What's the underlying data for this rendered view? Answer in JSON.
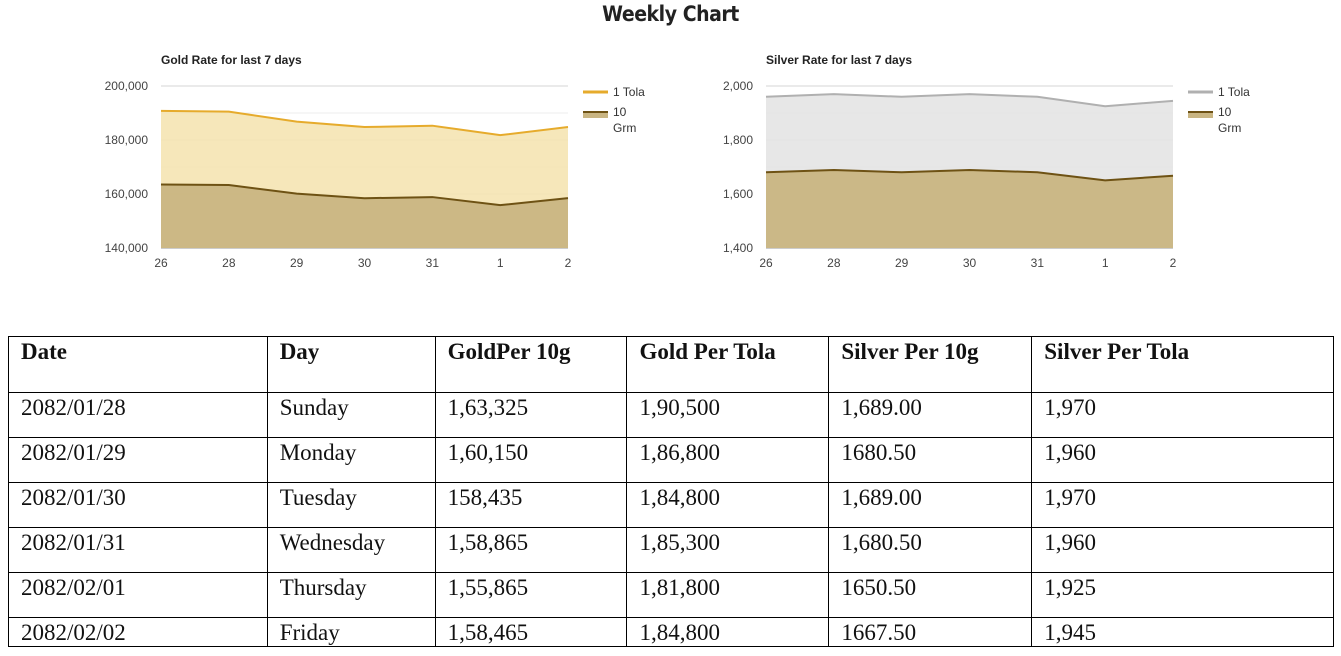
{
  "page": {
    "title": "Weekly Chart"
  },
  "chart_data": [
    {
      "type": "area",
      "title": "Gold Rate for last 7 days",
      "categories": [
        "26",
        "28",
        "29",
        "30",
        "31",
        "1",
        "2"
      ],
      "series": [
        {
          "name": "1 Tola",
          "values": [
            190800,
            190500,
            186800,
            184800,
            185300,
            181800,
            184800
          ],
          "color": "#e6ab2c"
        },
        {
          "name": "10 Grm",
          "values": [
            163500,
            163325,
            160150,
            158435,
            158865,
            155865,
            158465
          ],
          "color": "#6e5214"
        }
      ],
      "ylim": [
        140000,
        200000
      ],
      "yticks": [
        140000,
        160000,
        180000,
        200000
      ],
      "ytick_labels": [
        "140,000",
        "160,000",
        "180,000",
        "200,000"
      ],
      "grid": true,
      "legend": "right"
    },
    {
      "type": "area",
      "title": "Silver Rate for last 7 days",
      "categories": [
        "26",
        "28",
        "29",
        "30",
        "31",
        "1",
        "2"
      ],
      "series": [
        {
          "name": "1 Tola",
          "values": [
            1960,
            1970,
            1960,
            1970,
            1960,
            1925,
            1945
          ],
          "color": "#b0b0b0"
        },
        {
          "name": "10 Grm",
          "values": [
            1680.5,
            1689,
            1680.5,
            1689,
            1680.5,
            1650.5,
            1667.5
          ],
          "color": "#6e5214"
        }
      ],
      "ylim": [
        1400,
        2000
      ],
      "yticks": [
        1400,
        1600,
        1800,
        2000
      ],
      "ytick_labels": [
        "1,400",
        "1,600",
        "1,800",
        "2,000"
      ],
      "grid": true,
      "legend": "right"
    }
  ],
  "table": {
    "headers": [
      "Date",
      "Day",
      "GoldPer 10g",
      "Gold Per Tola",
      "Silver Per 10g",
      "Silver Per Tola"
    ],
    "rows": [
      [
        "2082/01/28",
        "Sunday",
        "1,63,325",
        "1,90,500",
        "1,689.00",
        "1,970"
      ],
      [
        "2082/01/29",
        "Monday",
        "1,60,150",
        "1,86,800",
        "1680.50",
        "1,960"
      ],
      [
        "2082/01/30",
        "Tuesday",
        "158,435",
        "1,84,800",
        "1,689.00",
        "1,970"
      ],
      [
        "2082/01/31",
        "Wednesday",
        "1,58,865",
        "1,85,300",
        "1,680.50",
        "1,960"
      ],
      [
        "2082/02/01",
        "Thursday",
        "1,55,865",
        "1,81,800",
        "1650.50",
        "1,925"
      ],
      [
        "2082/02/02",
        "Friday",
        "1,58,465",
        "1,84,800",
        "1667.50",
        "1,945"
      ]
    ]
  }
}
